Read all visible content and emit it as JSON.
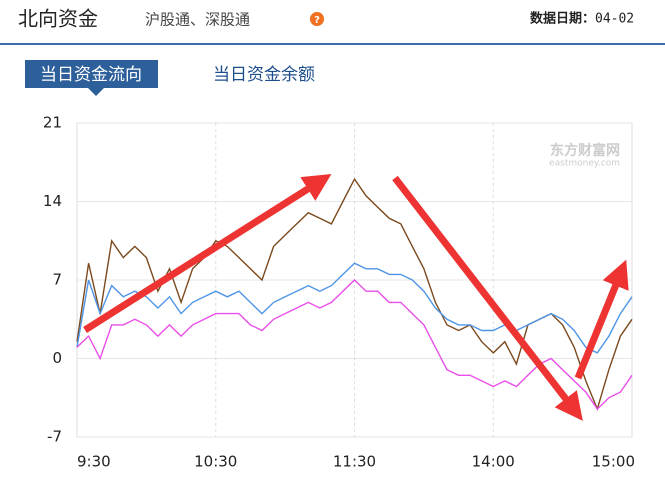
{
  "header": {
    "title": "北向资金",
    "subtitle": "沪股通、深股通",
    "date_label": "数据日期：",
    "date": "04-02"
  },
  "tabs": [
    "当日资金流向",
    "当日资金余额"
  ],
  "watermark": {
    "name": "东方财富网",
    "url": "eastmoney.com"
  },
  "chart_data": {
    "type": "line",
    "categories": [
      "9:30",
      null,
      null,
      null,
      null,
      null,
      null,
      null,
      null,
      null,
      null,
      null,
      "10:30",
      null,
      null,
      null,
      null,
      null,
      null,
      null,
      null,
      null,
      null,
      null,
      "11:30",
      null,
      null,
      null,
      null,
      null,
      null,
      null,
      null,
      null,
      null,
      null,
      "14:00",
      null,
      null,
      null,
      null,
      null,
      null,
      null,
      null,
      null,
      null,
      null,
      "15:00"
    ],
    "series": [
      {
        "color": "#7b4a1e",
        "values": [
          1.5,
          8.5,
          4,
          10.5,
          9,
          10,
          9,
          6,
          8,
          5,
          8,
          9,
          10.5,
          10,
          9,
          8,
          7,
          10,
          11,
          12,
          13,
          12.5,
          12,
          14,
          16,
          14.5,
          13.5,
          12.5,
          12,
          10,
          8,
          5,
          3,
          2.5,
          3,
          1.5,
          0.5,
          1.5,
          -0.5,
          3,
          3.5,
          4,
          3,
          1,
          -2,
          -4.5,
          -1,
          2,
          3.5
        ]
      },
      {
        "color": "#4f95e6",
        "values": [
          1,
          7,
          4,
          6.5,
          5.5,
          6,
          5.5,
          4.5,
          5.5,
          4,
          5,
          5.5,
          6,
          5.5,
          6,
          5,
          4,
          5,
          5.5,
          6,
          6.5,
          6,
          6.5,
          7.5,
          8.5,
          8,
          8,
          7.5,
          7.5,
          7,
          6,
          4.5,
          3.5,
          3,
          3,
          2.5,
          2.5,
          3,
          2.5,
          3,
          3.5,
          4,
          3.5,
          2.5,
          1,
          0.5,
          2,
          4,
          5.5
        ]
      },
      {
        "color": "#e94ee9",
        "values": [
          1,
          2,
          0,
          3,
          3,
          3.5,
          3,
          2,
          3,
          2,
          3,
          3.5,
          4,
          4,
          4,
          3,
          2.5,
          3.5,
          4,
          4.5,
          5,
          4.5,
          5,
          6,
          7,
          6,
          6,
          5,
          5,
          4,
          3,
          1,
          -1,
          -1.5,
          -1.5,
          -2,
          -2.5,
          -2,
          -2.5,
          -1.5,
          -0.5,
          0,
          -1,
          -2,
          -3,
          -4.5,
          -3.5,
          -3,
          -1.5
        ]
      }
    ],
    "ylim": [
      -7,
      21
    ],
    "yticks": [
      -7,
      0,
      7,
      14,
      21
    ],
    "grid": true
  }
}
